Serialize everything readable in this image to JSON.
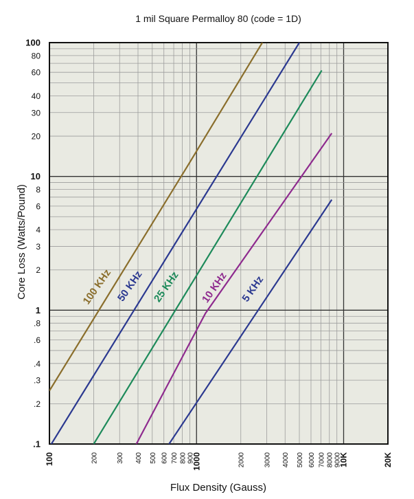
{
  "chart_data": {
    "type": "line",
    "title": "1 mil Square Permalloy 80 (code = 1D)",
    "xlabel": "Flux Density (Gauss)",
    "ylabel": "Core Loss (Watts/Pound)",
    "x_scale": "log",
    "y_scale": "log",
    "xlim": [
      100,
      20000
    ],
    "ylim": [
      0.1,
      100
    ],
    "grid": true,
    "x_ticks": [
      {
        "value": 100,
        "label": "100",
        "major": true
      },
      {
        "value": 200,
        "label": "200",
        "major": false
      },
      {
        "value": 300,
        "label": "300",
        "major": false
      },
      {
        "value": 400,
        "label": "400",
        "major": false
      },
      {
        "value": 500,
        "label": "500",
        "major": false
      },
      {
        "value": 600,
        "label": "600",
        "major": false
      },
      {
        "value": 700,
        "label": "700",
        "major": false
      },
      {
        "value": 800,
        "label": "800",
        "major": false
      },
      {
        "value": 900,
        "label": "900",
        "major": false
      },
      {
        "value": 1000,
        "label": "1000",
        "major": true
      },
      {
        "value": 2000,
        "label": "2000",
        "major": false
      },
      {
        "value": 3000,
        "label": "3000",
        "major": false
      },
      {
        "value": 4000,
        "label": "4000",
        "major": false
      },
      {
        "value": 5000,
        "label": "5000",
        "major": false
      },
      {
        "value": 6000,
        "label": "6000",
        "major": false
      },
      {
        "value": 7000,
        "label": "7000",
        "major": false
      },
      {
        "value": 8000,
        "label": "8000",
        "major": false
      },
      {
        "value": 9000,
        "label": "9000",
        "major": false
      },
      {
        "value": 10000,
        "label": "10K",
        "major": true
      },
      {
        "value": 20000,
        "label": "20K",
        "major": true
      }
    ],
    "y_ticks": [
      {
        "value": 0.1,
        "label": ".1",
        "major": true
      },
      {
        "value": 0.2,
        "label": ".2",
        "major": false
      },
      {
        "value": 0.3,
        "label": ".3",
        "major": false
      },
      {
        "value": 0.4,
        "label": ".4",
        "major": false
      },
      {
        "value": 0.6,
        "label": ".6",
        "major": false
      },
      {
        "value": 0.8,
        "label": ".8",
        "major": false
      },
      {
        "value": 1,
        "label": "1",
        "major": true
      },
      {
        "value": 2,
        "label": "2",
        "major": false
      },
      {
        "value": 3,
        "label": "3",
        "major": false
      },
      {
        "value": 4,
        "label": "4",
        "major": false
      },
      {
        "value": 6,
        "label": "6",
        "major": false
      },
      {
        "value": 8,
        "label": "8",
        "major": false
      },
      {
        "value": 10,
        "label": "10",
        "major": true
      },
      {
        "value": 20,
        "label": "20",
        "major": false
      },
      {
        "value": 30,
        "label": "30",
        "major": false
      },
      {
        "value": 40,
        "label": "40",
        "major": false
      },
      {
        "value": 60,
        "label": "60",
        "major": false
      },
      {
        "value": 80,
        "label": "80",
        "major": false
      },
      {
        "value": 100,
        "label": "100",
        "major": true
      }
    ],
    "series": [
      {
        "name": "100 KHz",
        "color": "#8a6e2c",
        "points": [
          [
            100,
            0.25
          ],
          [
            870,
            12
          ],
          [
            2800,
            100
          ]
        ]
      },
      {
        "name": "50 KHz",
        "color": "#2b3990",
        "points": [
          [
            103,
            0.1
          ],
          [
            5000,
            100
          ]
        ]
      },
      {
        "name": "25 KHz",
        "color": "#1d8a5a",
        "points": [
          [
            200,
            0.1
          ],
          [
            7100,
            62
          ]
        ]
      },
      {
        "name": "10 KHz",
        "color": "#8e2a8e",
        "points": [
          [
            390,
            0.1
          ],
          [
            1150,
            0.95
          ],
          [
            8300,
            21
          ]
        ]
      },
      {
        "name": "5 KHz",
        "color": "#2b3990",
        "points": [
          [
            650,
            0.1
          ],
          [
            8300,
            6.7
          ]
        ]
      }
    ]
  },
  "colors": {
    "plot_background": "#e9eae2",
    "grid": "#9c9c9c",
    "grid_major": "#333333"
  }
}
